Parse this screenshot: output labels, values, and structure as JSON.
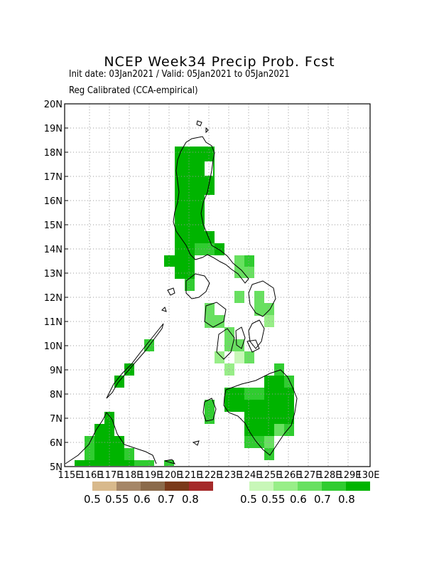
{
  "title": "NCEP Week34 Precip Prob. Fcst",
  "subtitle_dates": "Init date: 03Jan2021 / Valid: 05Jan2021 to 05Jan2021",
  "subtitle_method": "Reg Calibrated (CCA-empirical)",
  "lat_ticks": [
    "5N",
    "6N",
    "7N",
    "8N",
    "9N",
    "10N",
    "11N",
    "12N",
    "13N",
    "14N",
    "15N",
    "16N",
    "17N",
    "18N",
    "19N",
    "20N"
  ],
  "lon_ticks": [
    "115E",
    "116E",
    "117E",
    "118E",
    "119E",
    "120E",
    "121E",
    "122E",
    "123E",
    "124E",
    "125E",
    "126E",
    "127E",
    "128E",
    "129E",
    "130E"
  ],
  "legend_dry": {
    "colors": [
      "#d8b98c",
      "#a58667",
      "#8b6a4a",
      "#7a3a1a",
      "#a52a2a"
    ],
    "labels": [
      "0.5",
      "0.55",
      "0.6",
      "0.7",
      "0.8"
    ]
  },
  "legend_wet": {
    "colors": [
      "#c8f7b8",
      "#98ee88",
      "#68e060",
      "#30cc30",
      "#00b400"
    ],
    "labels": [
      "0.5",
      "0.55",
      "0.6",
      "0.7",
      "0.8"
    ]
  },
  "grid": "dotted"
}
